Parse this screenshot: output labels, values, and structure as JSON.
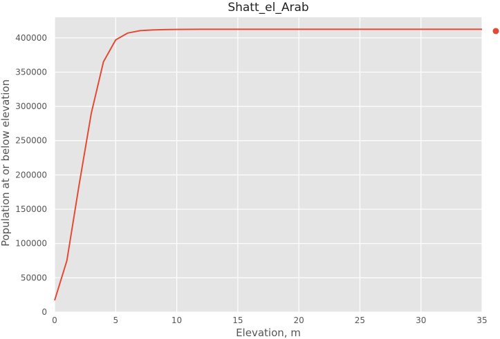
{
  "chart_data": {
    "type": "line",
    "title": "Shatt_el_Arab",
    "xlabel": "Elevation, m",
    "ylabel": "Population at or below elevation",
    "xlim": [
      0,
      35
    ],
    "ylim": [
      0,
      430000
    ],
    "grid": true,
    "xticks": [
      0,
      5,
      10,
      15,
      20,
      25,
      30,
      35
    ],
    "yticks": [
      0,
      50000,
      100000,
      150000,
      200000,
      250000,
      300000,
      350000,
      400000
    ],
    "series": [
      {
        "color": "#e24a33",
        "x": [
          0,
          1,
          2,
          3,
          4,
          5,
          6,
          7,
          8,
          9,
          10,
          11,
          12,
          13,
          14,
          15,
          16,
          17,
          18,
          19,
          20,
          21,
          22,
          23,
          24,
          25,
          26,
          27,
          28,
          29,
          30,
          31,
          32,
          33,
          34,
          35
        ],
        "y": [
          17000,
          75000,
          185000,
          290000,
          365000,
          397000,
          407000,
          410500,
          411500,
          412000,
          412300,
          412400,
          412500,
          412500,
          412500,
          412500,
          412500,
          412500,
          412500,
          412500,
          412500,
          412500,
          412500,
          412500,
          412500,
          412500,
          412500,
          412500,
          412500,
          412500,
          412500,
          412500,
          412500,
          412500,
          412500,
          412500
        ]
      }
    ]
  }
}
